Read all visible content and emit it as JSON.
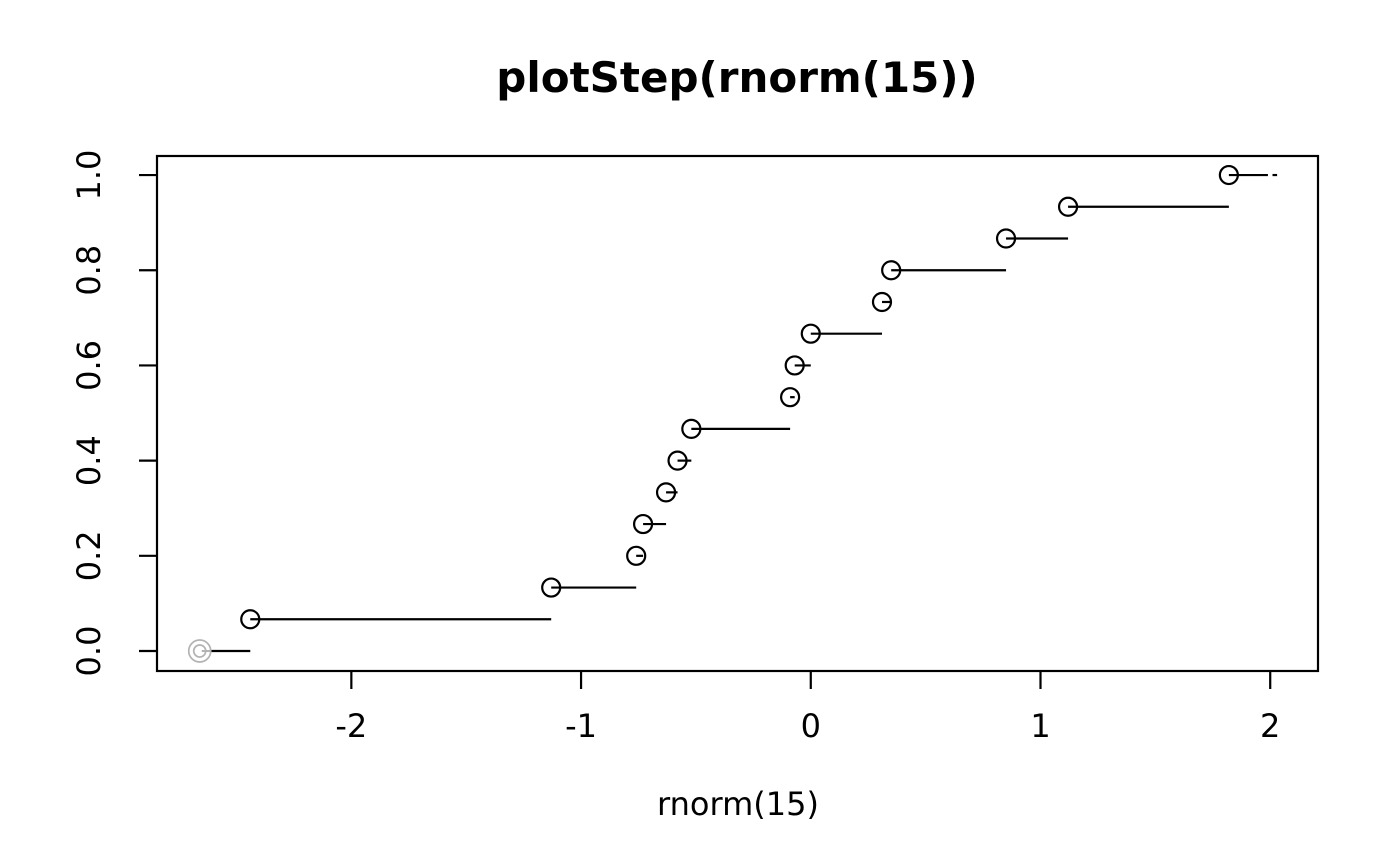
{
  "chart_data": {
    "type": "step",
    "title": "plotStep(rnorm(15))",
    "xlabel": "rnorm(15)",
    "ylabel": "",
    "x_ticks": [
      -2,
      -1,
      0,
      1,
      2
    ],
    "x_tick_labels": [
      "-2",
      "-1",
      "0",
      "1",
      "2"
    ],
    "y_ticks": [
      0.0,
      0.2,
      0.4,
      0.6,
      0.8,
      1.0
    ],
    "y_tick_labels": [
      "0.0",
      "0.2",
      "0.4",
      "0.6",
      "0.8",
      "1.0"
    ],
    "xlim": [
      -2.846,
      2.208
    ],
    "ylim": [
      -0.042,
      1.04
    ],
    "grid": false,
    "legend": null,
    "n": 15,
    "points": [
      {
        "x": -2.44,
        "y": 0.0667
      },
      {
        "x": -1.13,
        "y": 0.1333
      },
      {
        "x": -0.76,
        "y": 0.2
      },
      {
        "x": -0.73,
        "y": 0.2667
      },
      {
        "x": -0.63,
        "y": 0.3333
      },
      {
        "x": -0.58,
        "y": 0.4
      },
      {
        "x": -0.52,
        "y": 0.4667
      },
      {
        "x": -0.09,
        "y": 0.5333
      },
      {
        "x": -0.07,
        "y": 0.6
      },
      {
        "x": 0.0,
        "y": 0.6667
      },
      {
        "x": 0.31,
        "y": 0.7333
      },
      {
        "x": 0.35,
        "y": 0.8
      },
      {
        "x": 0.85,
        "y": 0.8667
      },
      {
        "x": 1.12,
        "y": 0.9333
      },
      {
        "x": 1.82,
        "y": 1.0
      }
    ],
    "start_point": {
      "x": -2.66,
      "y": 0.0,
      "style": "grey-double-circle"
    },
    "last_segment_end": 1.99,
    "trailing_dash": {
      "x1": 2.01,
      "x2": 2.03,
      "y": 1.0
    },
    "colors": {
      "foreground": "#000000",
      "background": "#ffffff",
      "start_point": "#b3b3b3"
    }
  }
}
